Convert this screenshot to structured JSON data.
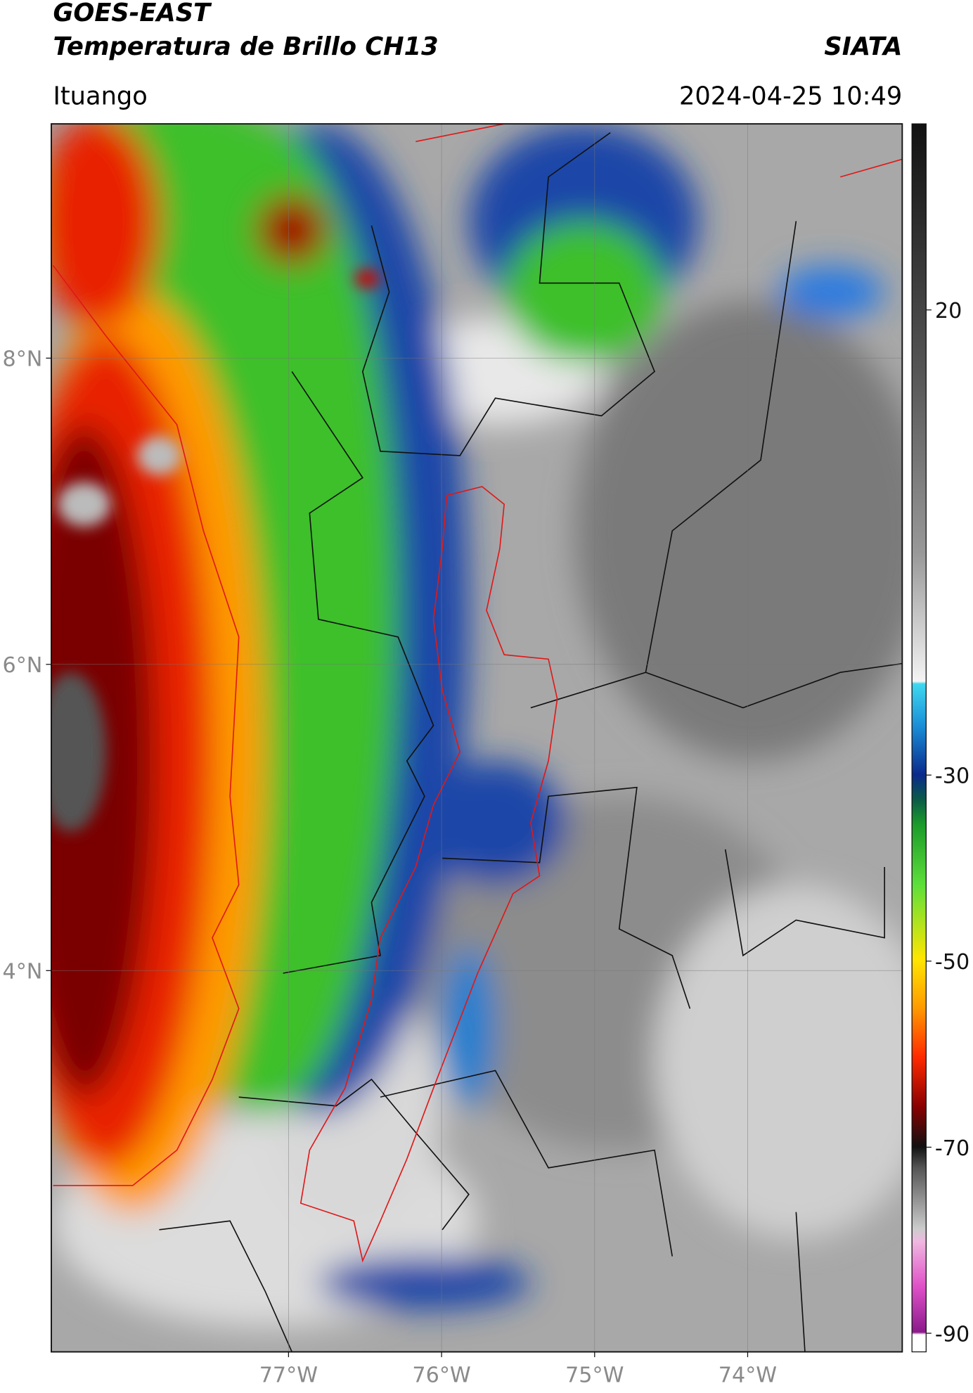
{
  "header": {
    "title": "GOES-EAST",
    "subtitle": "Temperatura de Brillo CH13",
    "source": "SIATA",
    "location": "Ituango",
    "timestamp": "2024-04-25 10:49"
  },
  "map": {
    "lon_range": [
      -78.55,
      -72.99
    ],
    "lat_range": [
      1.51,
      9.53
    ],
    "lon_ticks": [
      {
        "value": -77,
        "label": "77°W"
      },
      {
        "value": -76,
        "label": "76°W"
      },
      {
        "value": -75,
        "label": "75°W"
      },
      {
        "value": -74,
        "label": "74°W"
      }
    ],
    "lat_ticks": [
      {
        "value": 8,
        "label": "8°N"
      },
      {
        "value": 6,
        "label": "6°N"
      },
      {
        "value": 4,
        "label": "4°N"
      }
    ],
    "grid": true
  },
  "colorbar": {
    "range": [
      -92,
      40
    ],
    "ticks": [
      20,
      -30,
      -50,
      -70,
      -90
    ]
  }
}
